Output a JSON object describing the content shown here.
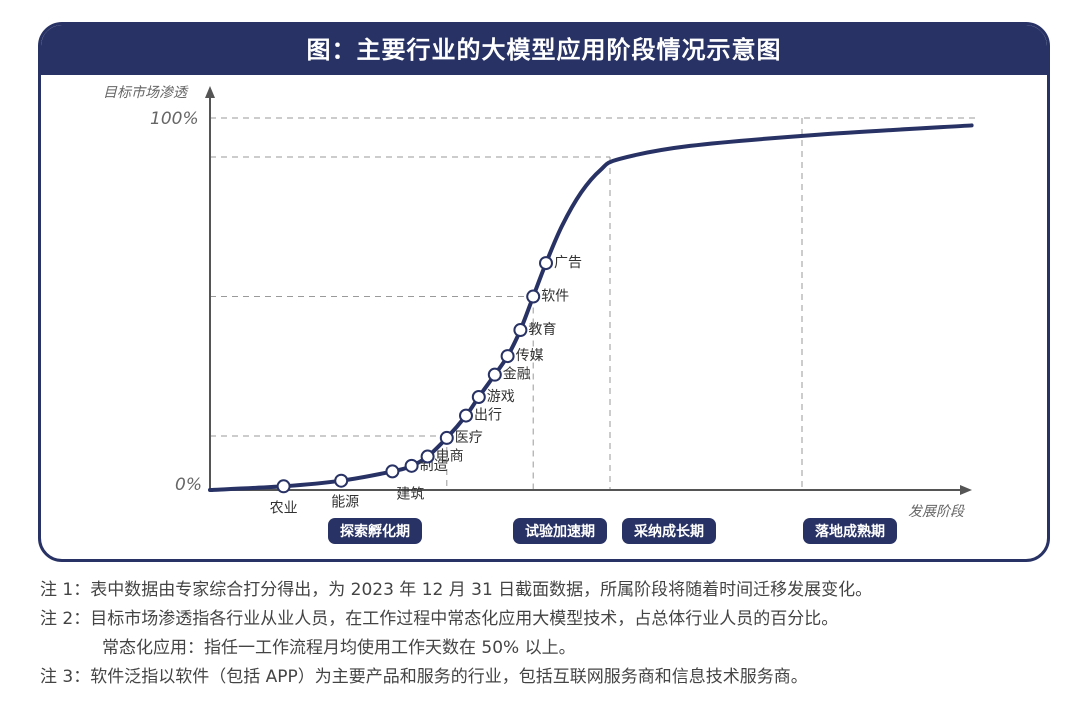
{
  "title": "图：主要行业的大模型应用阶段情况示意图",
  "chart_data": {
    "type": "line",
    "ylabel": "目标市场渗透",
    "xlabel": "发展阶段",
    "y_ticks": [
      "100%",
      "0%"
    ],
    "stages": [
      "探索孵化期",
      "试验加速期",
      "采纳成长期",
      "落地成熟期"
    ],
    "points": [
      {
        "label": "农业",
        "x": 0.23,
        "y": 0.01
      },
      {
        "label": "能源",
        "x": 0.41,
        "y": 0.025
      },
      {
        "label": "建筑",
        "x": 0.57,
        "y": 0.05
      },
      {
        "label": "制造",
        "x": 0.63,
        "y": 0.065
      },
      {
        "label": "电商",
        "x": 0.68,
        "y": 0.09
      },
      {
        "label": "医疗",
        "x": 0.74,
        "y": 0.14
      },
      {
        "label": "出行",
        "x": 0.8,
        "y": 0.2
      },
      {
        "label": "游戏",
        "x": 0.84,
        "y": 0.25
      },
      {
        "label": "金融",
        "x": 0.89,
        "y": 0.31
      },
      {
        "label": "传媒",
        "x": 0.93,
        "y": 0.36
      },
      {
        "label": "教育",
        "x": 0.97,
        "y": 0.43
      },
      {
        "label": "软件",
        "x": 1.01,
        "y": 0.52
      },
      {
        "label": "广告",
        "x": 1.05,
        "y": 0.61
      }
    ],
    "curve": [
      [
        0,
        0
      ],
      [
        0.23,
        0.01
      ],
      [
        0.41,
        0.025
      ],
      [
        0.57,
        0.05
      ],
      [
        0.63,
        0.065
      ],
      [
        0.68,
        0.09
      ],
      [
        0.74,
        0.14
      ],
      [
        0.8,
        0.2
      ],
      [
        0.84,
        0.25
      ],
      [
        0.89,
        0.31
      ],
      [
        0.93,
        0.36
      ],
      [
        0.97,
        0.43
      ],
      [
        1.01,
        0.52
      ],
      [
        1.05,
        0.61
      ],
      [
        1.1,
        0.71
      ],
      [
        1.16,
        0.8
      ],
      [
        1.22,
        0.86
      ],
      [
        1.28,
        0.89
      ],
      [
        1.5,
        0.925
      ],
      [
        1.9,
        0.955
      ],
      [
        2.38,
        0.98
      ]
    ],
    "h_guides": [
      1.0,
      0.895,
      0.52,
      0.145
    ],
    "v_guides": [
      0.74,
      1.01,
      1.25,
      1.85
    ]
  },
  "notes": [
    "注 1：表中数据由专家综合打分得出，为 2023 年 12 月 31 日截面数据，所属阶段将随着时间迁移发展变化。",
    "注 2：目标市场渗透指各行业从业人员，在工作过程中常态化应用大模型技术，占总体行业人员的百分比。",
    "常态化应用：指任一工作流程月均使用工作天数在 50% 以上。",
    "注 3：软件泛指以软件（包括 APP）为主要产品和服务的行业，包括互联网服务商和信息技术服务商。"
  ],
  "colors": {
    "navy": "#283264",
    "guide": "#9a9a9a",
    "axis": "#555555",
    "white": "#ffffff"
  }
}
